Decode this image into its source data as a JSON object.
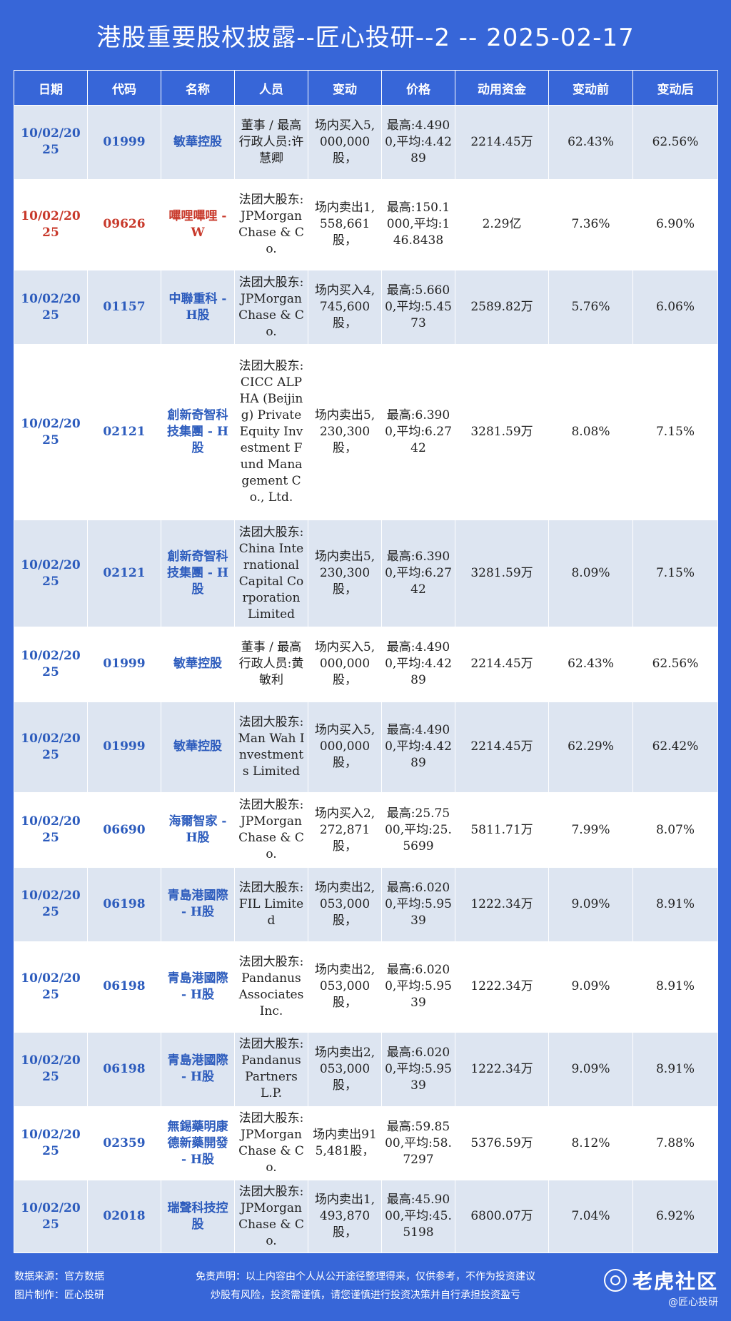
{
  "title": "港股重要股权披露--匠心投研--2 -- 2025-02-17",
  "columns": [
    "日期",
    "代码",
    "名称",
    "人员",
    "变动",
    "价格",
    "动用资金",
    "变动前",
    "变动后"
  ],
  "rows": [
    {
      "date": "10/02/2025",
      "code": "01999",
      "name": "敏華控股",
      "person": "董事 / 最高行政人员:许慧卿",
      "change": "场内买入5,000,000股，",
      "price": "最高:4.4900,平均:4.4289",
      "funds": "2214.45万",
      "before": "62.43%",
      "after": "62.56%",
      "highlight": false
    },
    {
      "date": "10/02/2025",
      "code": "09626",
      "name": "嗶哩嗶哩 - W",
      "person": "法团大股东:JPMorgan Chase & Co.",
      "change": "场内卖出1,558,661股，",
      "price": "最高:150.1000,平均:146.8438",
      "funds": "2.29亿",
      "before": "7.36%",
      "after": "6.90%",
      "highlight": true
    },
    {
      "date": "10/02/2025",
      "code": "01157",
      "name": "中聯重科 - H股",
      "person": "法团大股东:JPMorgan Chase & Co.",
      "change": "场内买入4,745,600股，",
      "price": "最高:5.6600,平均:5.4573",
      "funds": "2589.82万",
      "before": "5.76%",
      "after": "6.06%",
      "highlight": false
    },
    {
      "date": "10/02/2025",
      "code": "02121",
      "name": "創新奇智科技集團 - H股",
      "person": "法团大股东:CICC ALPHA (Beijing) Private Equity Investment Fund Management Co., Ltd.",
      "change": "场内卖出5,230,300股，",
      "price": "最高:6.3900,平均:6.2742",
      "funds": "3281.59万",
      "before": "8.08%",
      "after": "7.15%",
      "highlight": false
    },
    {
      "date": "10/02/2025",
      "code": "02121",
      "name": "創新奇智科技集團 - H股",
      "person": "法团大股东:China International Capital Corporation Limited",
      "change": "场内卖出5,230,300股，",
      "price": "最高:6.3900,平均:6.2742",
      "funds": "3281.59万",
      "before": "8.09%",
      "after": "7.15%",
      "highlight": false
    },
    {
      "date": "10/02/2025",
      "code": "01999",
      "name": "敏華控股",
      "person": "董事 / 最高行政人员:黄敏利",
      "change": "场内买入5,000,000股，",
      "price": "最高:4.4900,平均:4.4289",
      "funds": "2214.45万",
      "before": "62.43%",
      "after": "62.56%",
      "highlight": false
    },
    {
      "date": "10/02/2025",
      "code": "01999",
      "name": "敏華控股",
      "person": "法团大股东:Man Wah Investments Limited",
      "change": "场内买入5,000,000股，",
      "price": "最高:4.4900,平均:4.4289",
      "funds": "2214.45万",
      "before": "62.29%",
      "after": "62.42%",
      "highlight": false
    },
    {
      "date": "10/02/2025",
      "code": "06690",
      "name": "海爾智家 - H股",
      "person": "法团大股东:JPMorgan Chase & Co.",
      "change": "场内买入2,272,871股，",
      "price": "最高:25.7500,平均:25.5699",
      "funds": "5811.71万",
      "before": "7.99%",
      "after": "8.07%",
      "highlight": false
    },
    {
      "date": "10/02/2025",
      "code": "06198",
      "name": "青島港國際 - H股",
      "person": "法团大股东:FIL Limited",
      "change": "场内卖出2,053,000股，",
      "price": "最高:6.0200,平均:5.9539",
      "funds": "1222.34万",
      "before": "9.09%",
      "after": "8.91%",
      "highlight": false
    },
    {
      "date": "10/02/2025",
      "code": "06198",
      "name": "青島港國際 - H股",
      "person": "法团大股东:Pandanus Associates Inc.",
      "change": "场内卖出2,053,000股，",
      "price": "最高:6.0200,平均:5.9539",
      "funds": "1222.34万",
      "before": "9.09%",
      "after": "8.91%",
      "highlight": false
    },
    {
      "date": "10/02/2025",
      "code": "06198",
      "name": "青島港國際 - H股",
      "person": "法团大股东:Pandanus Partners L.P.",
      "change": "场内卖出2,053,000股，",
      "price": "最高:6.0200,平均:5.9539",
      "funds": "1222.34万",
      "before": "9.09%",
      "after": "8.91%",
      "highlight": false
    },
    {
      "date": "10/02/2025",
      "code": "02359",
      "name": "無錫藥明康德新藥開發 - H股",
      "person": "法团大股东:JPMorgan Chase & Co.",
      "change": "场内卖出915,481股，",
      "price": "最高:59.8500,平均:58.7297",
      "funds": "5376.59万",
      "before": "8.12%",
      "after": "7.88%",
      "highlight": false
    },
    {
      "date": "10/02/2025",
      "code": "02018",
      "name": "瑞聲科技控股",
      "person": "法团大股东:JPMorgan Chase & Co.",
      "change": "场内卖出1,493,870股，",
      "price": "最高:45.9000,平均:45.5198",
      "funds": "6800.07万",
      "before": "7.04%",
      "after": "6.92%",
      "highlight": false
    }
  ],
  "footer": {
    "source": "数据来源：官方数据",
    "maker": "图片制作：匠心投研",
    "disclaimer": "免责声明：以上内容由个人从公开途径整理得来，仅供参考，不作为投资建议",
    "risk": "炒股有风险，投资需谨慎，请您谨慎进行投资决策并自行承担投资盈亏",
    "logo_text": "老虎社区",
    "logo_sub": "@匠心投研"
  }
}
